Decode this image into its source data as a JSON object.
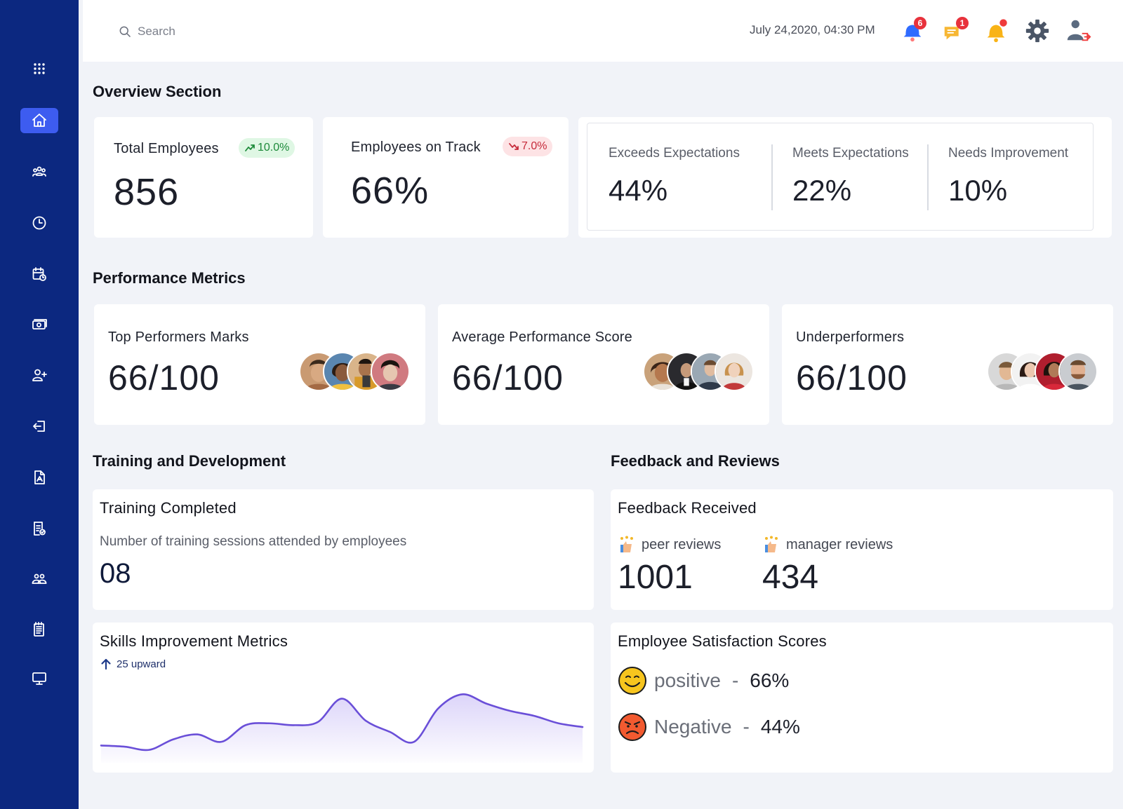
{
  "header": {
    "search_placeholder": "Search",
    "datetime": "July 24,2020, 04:30 PM",
    "icons": [
      {
        "name": "notification-bell-icon",
        "badge": "6"
      },
      {
        "name": "chat-alert-icon",
        "badge": "1"
      },
      {
        "name": "alert-bell-icon",
        "badge": ""
      },
      {
        "name": "settings-gear-icon",
        "badge": ""
      },
      {
        "name": "user-logout-icon",
        "badge": ""
      }
    ]
  },
  "sidebar": {
    "items": [
      {
        "name": "apps-grid-icon",
        "active": false
      },
      {
        "name": "home-icon",
        "active": true
      },
      {
        "name": "team-icon",
        "active": false
      },
      {
        "name": "clock-icon",
        "active": false
      },
      {
        "name": "calendar-clock-icon",
        "active": false
      },
      {
        "name": "money-icon",
        "active": false
      },
      {
        "name": "add-user-icon",
        "active": false
      },
      {
        "name": "exit-icon",
        "active": false
      },
      {
        "name": "document-icon",
        "active": false
      },
      {
        "name": "report-icon",
        "active": false
      },
      {
        "name": "group-icon",
        "active": false
      },
      {
        "name": "notes-icon",
        "active": false
      },
      {
        "name": "monitor-icon",
        "active": false
      }
    ]
  },
  "overview": {
    "title": "Overview Section",
    "total_employees": {
      "label": "Total Employees",
      "value": "856",
      "change": "10.0%",
      "trend": "up"
    },
    "on_track": {
      "label": "Employees on Track",
      "value": "66%",
      "change": "7.0%",
      "trend": "down"
    },
    "expectations": [
      {
        "label": "Exceeds Expectations",
        "value": "44%"
      },
      {
        "label": "Meets Expectations",
        "value": "22%"
      },
      {
        "label": "Needs Improvement",
        "value": "10%"
      }
    ]
  },
  "performance": {
    "title": "Performance Metrics",
    "cards": [
      {
        "label": "Top Performers Marks",
        "value": "66/100"
      },
      {
        "label": "Average Performance Score",
        "value": "66/100"
      },
      {
        "label": "Underperformers",
        "value": "66/100"
      }
    ]
  },
  "training": {
    "title": "Training and Development",
    "completed": {
      "label": "Training Completed",
      "description": "Number of training sessions attended by employees",
      "value": "08"
    },
    "skills": {
      "label": "Skills Improvement Metrics",
      "trend_text": "25 upward"
    }
  },
  "feedback": {
    "title": "Feedback and Reviews",
    "received": {
      "label": "Feedback Received",
      "peer_label": "peer reviews",
      "peer_value": "1001",
      "manager_label": "manager reviews",
      "manager_value": "434"
    },
    "satisfaction": {
      "label": "Employee Satisfaction Scores",
      "positive_label": "positive",
      "positive_value": "66%",
      "negative_label": "Negative",
      "negative_value": "44%"
    }
  },
  "colors": {
    "sidebar": "#0c2880",
    "active": "#3d5cf0",
    "chart_line": "#6a4fd8"
  },
  "chart_data": {
    "type": "area",
    "x": [
      0,
      1,
      2,
      3,
      4,
      5,
      6,
      7,
      8,
      9,
      10,
      11,
      12,
      13,
      14,
      15,
      16,
      17,
      18,
      19,
      20
    ],
    "values": [
      12,
      10,
      5,
      22,
      30,
      18,
      45,
      48,
      45,
      50,
      88,
      52,
      34,
      18,
      72,
      95,
      80,
      68,
      60,
      48,
      42
    ],
    "title": "",
    "xlabel": "",
    "ylabel": "",
    "ylim": [
      0,
      100
    ],
    "grid": false
  }
}
